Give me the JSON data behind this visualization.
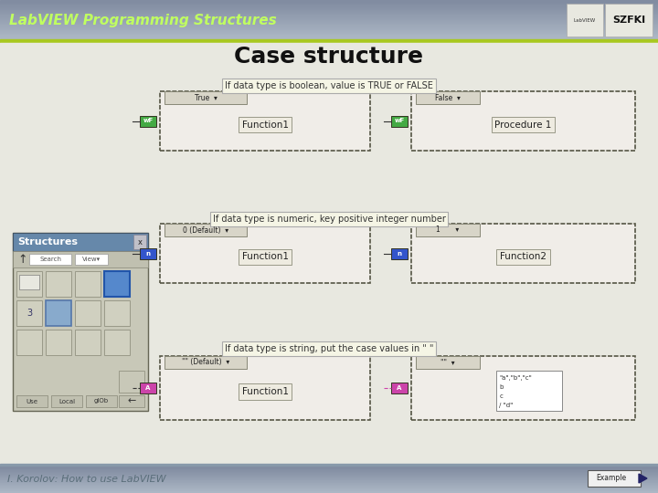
{
  "title": "Case structure",
  "header_text": "LabVIEW Programming Structures",
  "footer_text": "I. Korolov: How to use LabVIEW",
  "row1_label": "If data type is boolean, value is TRUE or FALSE",
  "row2_label": "If data type is numeric, key positive integer number",
  "row3_label": "If data type is string, put the case values in \" \"",
  "panel_text_r1_l": "Function1",
  "panel_text_r1_r": "Procedure 1",
  "panel_text_r2_l": "Function1",
  "panel_text_r2_r": "Function2",
  "panel_text_r3_l": "Function1",
  "tab_r1_l": "True  ▾",
  "tab_r1_r": "False  ▾",
  "tab_r2_l": "0 (Default)  ▾",
  "tab_r2_r": "1       ▾",
  "tab_r3_l": "\"\" (Default)  ▾",
  "tab_r3_r": "\"\"  ▾",
  "connector_r1_text": "wF",
  "connector_r2_text": "n",
  "connector_r3_text": "A",
  "connector_r1_color": "#44aa44",
  "connector_r2_color": "#3355cc",
  "connector_r3_color": "#cc44aa",
  "header_text_color": "#c0ff60",
  "body_bg": "#e8e8e0",
  "panel_face": "#f0ede0",
  "panel_edge": "#888877",
  "tab_face": "#d0cdc0",
  "label_face": "#f5f5e0",
  "label_edge": "#aaaaaa",
  "str_panel_r3_r_lines": [
    "\"a\",\"b\",\"c\"",
    "b",
    "c",
    "/ \"d\""
  ]
}
